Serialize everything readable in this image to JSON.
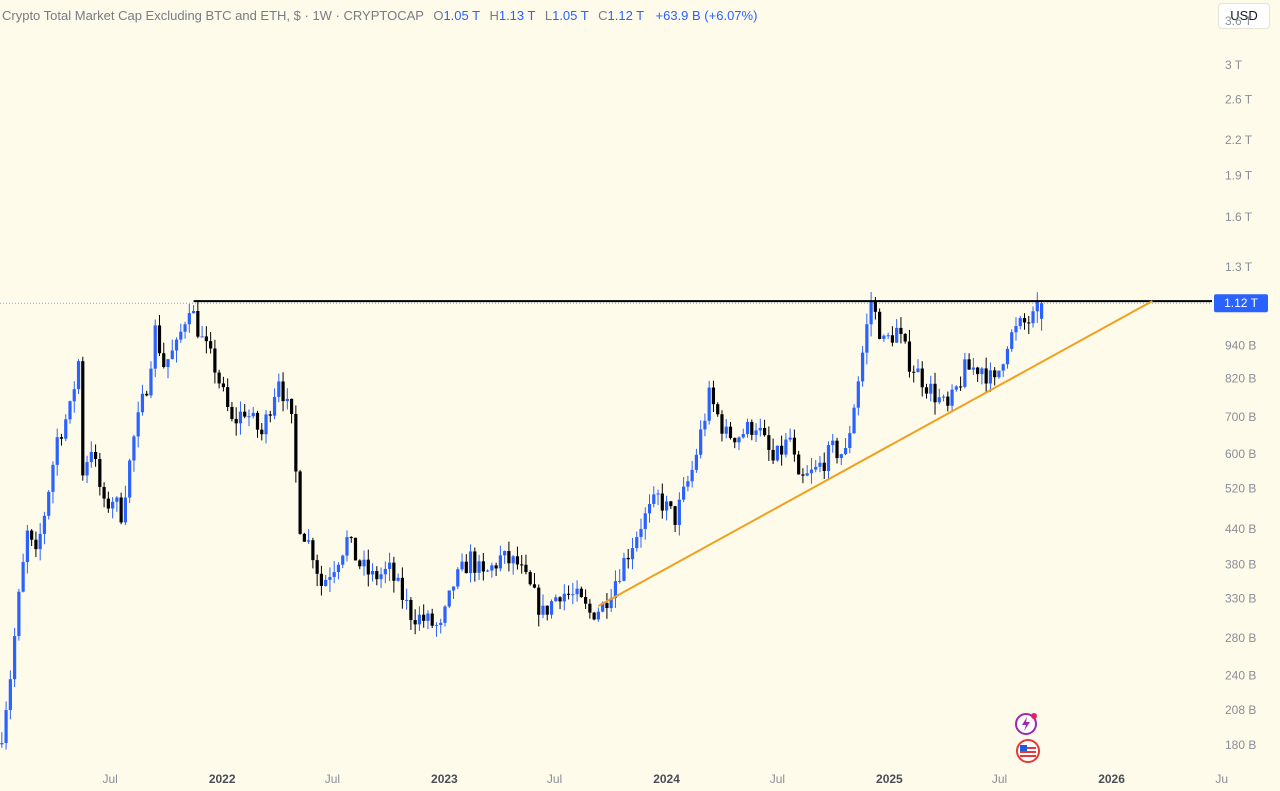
{
  "header": {
    "title": "Crypto Total Market Cap Excluding BTC and ETH, $ · 1W · CRYPTOCAP",
    "o_label": "O",
    "o_value": "1.05 T",
    "h_label": "H",
    "h_value": "1.13 T",
    "l_label": "L",
    "l_value": "1.05 T",
    "c_label": "C",
    "c_value": "1.12 T",
    "change": "+63.9 B (+6.07%)"
  },
  "currency_button": "USD",
  "icons": [
    "lightning-icon",
    "us-flag-icon"
  ],
  "colors": {
    "background": "#fefbeb",
    "up": "#2962ff",
    "down": "#000000",
    "trendline": "#f29f1d",
    "resistance": "#000000",
    "price_tag": "#2962ff"
  },
  "chart_data": {
    "type": "candlestick",
    "scale": "log",
    "ylim": [
      165000000000,
      3800000000000
    ],
    "xlim": [
      "2021-01-01",
      "2026-06-15"
    ],
    "last_price_label": "1.12 T",
    "last_price": 1120000000000,
    "y_ticks": [
      {
        "label": "3.6 T",
        "value": 3600000000000
      },
      {
        "label": "3 T",
        "value": 3000000000000
      },
      {
        "label": "2.6 T",
        "value": 2600000000000
      },
      {
        "label": "2.2 T",
        "value": 2200000000000
      },
      {
        "label": "1.9 T",
        "value": 1900000000000
      },
      {
        "label": "1.6 T",
        "value": 1600000000000
      },
      {
        "label": "1.3 T",
        "value": 1300000000000
      },
      {
        "label": "940 B",
        "value": 940000000000
      },
      {
        "label": "820 B",
        "value": 820000000000
      },
      {
        "label": "700 B",
        "value": 700000000000
      },
      {
        "label": "600 B",
        "value": 600000000000
      },
      {
        "label": "520 B",
        "value": 520000000000
      },
      {
        "label": "440 B",
        "value": 440000000000
      },
      {
        "label": "380 B",
        "value": 380000000000
      },
      {
        "label": "330 B",
        "value": 330000000000
      },
      {
        "label": "280 B",
        "value": 280000000000
      },
      {
        "label": "240 B",
        "value": 240000000000
      },
      {
        "label": "208 B",
        "value": 208000000000
      },
      {
        "label": "180 B",
        "value": 180000000000
      }
    ],
    "x_ticks": [
      {
        "label": "Jul",
        "date": "2021-07-01",
        "bold": false
      },
      {
        "label": "2022",
        "date": "2022-01-01",
        "bold": true
      },
      {
        "label": "Jul",
        "date": "2022-07-01",
        "bold": false
      },
      {
        "label": "2023",
        "date": "2023-01-01",
        "bold": true
      },
      {
        "label": "Jul",
        "date": "2023-07-01",
        "bold": false
      },
      {
        "label": "2024",
        "date": "2024-01-01",
        "bold": true
      },
      {
        "label": "Jul",
        "date": "2024-07-01",
        "bold": false
      },
      {
        "label": "2025",
        "date": "2025-01-01",
        "bold": true
      },
      {
        "label": "Jul",
        "date": "2025-07-01",
        "bold": false
      },
      {
        "label": "2026",
        "date": "2026-01-01",
        "bold": true
      },
      {
        "label": "Ju",
        "date": "2026-07-01",
        "bold": false
      }
    ],
    "resistance_line": {
      "from": "2021-11-15",
      "to": "2026-06-15",
      "value": 1130000000000
    },
    "trendline": {
      "from": [
        "2023-09-11",
        320000000000
      ],
      "to": [
        "2026-03-09",
        1130000000000
      ]
    },
    "price_path": [
      [
        "2021-01-04",
        190000000000
      ],
      [
        "2021-01-18",
        240000000000
      ],
      [
        "2021-02-01",
        330000000000
      ],
      [
        "2021-02-15",
        430000000000
      ],
      [
        "2021-03-01",
        390000000000
      ],
      [
        "2021-03-15",
        470000000000
      ],
      [
        "2021-04-05",
        640000000000
      ],
      [
        "2021-04-26",
        720000000000
      ],
      [
        "2021-05-10",
        880000000000
      ],
      [
        "2021-05-17",
        560000000000
      ],
      [
        "2021-05-31",
        620000000000
      ],
      [
        "2021-06-21",
        480000000000
      ],
      [
        "2021-07-05",
        500000000000
      ],
      [
        "2021-07-19",
        470000000000
      ],
      [
        "2021-08-09",
        640000000000
      ],
      [
        "2021-08-30",
        800000000000
      ],
      [
        "2021-09-13",
        1000000000000
      ],
      [
        "2021-09-27",
        870000000000
      ],
      [
        "2021-10-18",
        930000000000
      ],
      [
        "2021-11-08",
        1120000000000
      ],
      [
        "2021-11-29",
        960000000000
      ],
      [
        "2021-12-20",
        860000000000
      ],
      [
        "2022-01-17",
        680000000000
      ],
      [
        "2022-02-07",
        720000000000
      ],
      [
        "2022-03-07",
        650000000000
      ],
      [
        "2022-04-04",
        830000000000
      ],
      [
        "2022-04-25",
        680000000000
      ],
      [
        "2022-05-09",
        450000000000
      ],
      [
        "2022-05-30",
        400000000000
      ],
      [
        "2022-06-13",
        350000000000
      ],
      [
        "2022-07-04",
        380000000000
      ],
      [
        "2022-07-25",
        420000000000
      ],
      [
        "2022-08-15",
        380000000000
      ],
      [
        "2022-09-05",
        360000000000
      ],
      [
        "2022-10-03",
        370000000000
      ],
      [
        "2022-11-07",
        310000000000
      ],
      [
        "2022-12-05",
        300000000000
      ],
      [
        "2022-12-26",
        290000000000
      ],
      [
        "2023-01-16",
        350000000000
      ],
      [
        "2023-02-13",
        390000000000
      ],
      [
        "2023-03-06",
        360000000000
      ],
      [
        "2023-04-03",
        390000000000
      ],
      [
        "2023-05-01",
        380000000000
      ],
      [
        "2023-06-12",
        310000000000
      ],
      [
        "2023-07-10",
        340000000000
      ],
      [
        "2023-08-07",
        330000000000
      ],
      [
        "2023-08-28",
        310000000000
      ],
      [
        "2023-09-18",
        320000000000
      ],
      [
        "2023-10-30",
        400000000000
      ],
      [
        "2023-11-20",
        450000000000
      ],
      [
        "2023-12-18",
        500000000000
      ],
      [
        "2024-01-15",
        460000000000
      ],
      [
        "2024-02-12",
        560000000000
      ],
      [
        "2024-03-11",
        760000000000
      ],
      [
        "2024-04-08",
        650000000000
      ],
      [
        "2024-04-29",
        650000000000
      ],
      [
        "2024-05-27",
        680000000000
      ],
      [
        "2024-06-24",
        580000000000
      ],
      [
        "2024-07-22",
        640000000000
      ],
      [
        "2024-08-05",
        530000000000
      ],
      [
        "2024-09-02",
        560000000000
      ],
      [
        "2024-09-30",
        610000000000
      ],
      [
        "2024-10-21",
        600000000000
      ],
      [
        "2024-11-11",
        820000000000
      ],
      [
        "2024-12-02",
        1130000000000
      ],
      [
        "2024-12-23",
        950000000000
      ],
      [
        "2025-01-13",
        1000000000000
      ],
      [
        "2025-02-03",
        880000000000
      ],
      [
        "2025-03-03",
        800000000000
      ],
      [
        "2025-04-07",
        720000000000
      ],
      [
        "2025-05-05",
        850000000000
      ],
      [
        "2025-06-02",
        860000000000
      ],
      [
        "2025-06-23",
        800000000000
      ],
      [
        "2025-07-14",
        960000000000
      ],
      [
        "2025-08-04",
        1020000000000
      ],
      [
        "2025-08-25",
        1050000000000
      ],
      [
        "2025-09-08",
        1120000000000
      ]
    ]
  }
}
